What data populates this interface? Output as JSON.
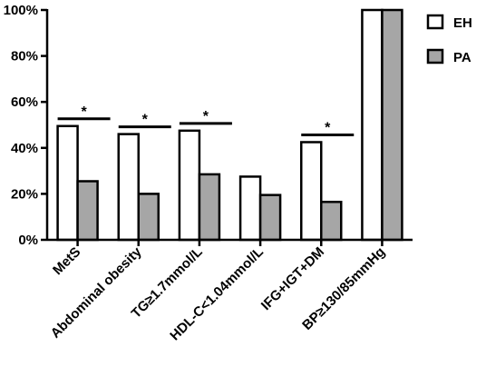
{
  "chart_data": {
    "type": "bar",
    "categories": [
      "MetS",
      "Abdominal obesity",
      "TG≥1.7mmol/L",
      "HDL-C<1.04mmol/L",
      "IFG+IGT+DM",
      "BP≥130/85mmHg"
    ],
    "series": [
      {
        "name": "EH",
        "values": [
          49.5,
          46,
          47.5,
          27.5,
          42.5,
          100
        ],
        "color": "#ffffff"
      },
      {
        "name": "PA",
        "values": [
          25.5,
          20,
          28.5,
          19.5,
          16.5,
          100
        ],
        "color": "#a6a6a6"
      }
    ],
    "yticks": [
      "0%",
      "20%",
      "40%",
      "60%",
      "80%",
      "100%"
    ],
    "ylim": [
      0,
      100
    ],
    "significance": [
      {
        "category_index": 0,
        "label": "*"
      },
      {
        "category_index": 1,
        "label": "*"
      },
      {
        "category_index": 2,
        "label": "*"
      },
      {
        "category_index": 4,
        "label": "*"
      }
    ],
    "legend_position": "top-right",
    "grid": false
  }
}
